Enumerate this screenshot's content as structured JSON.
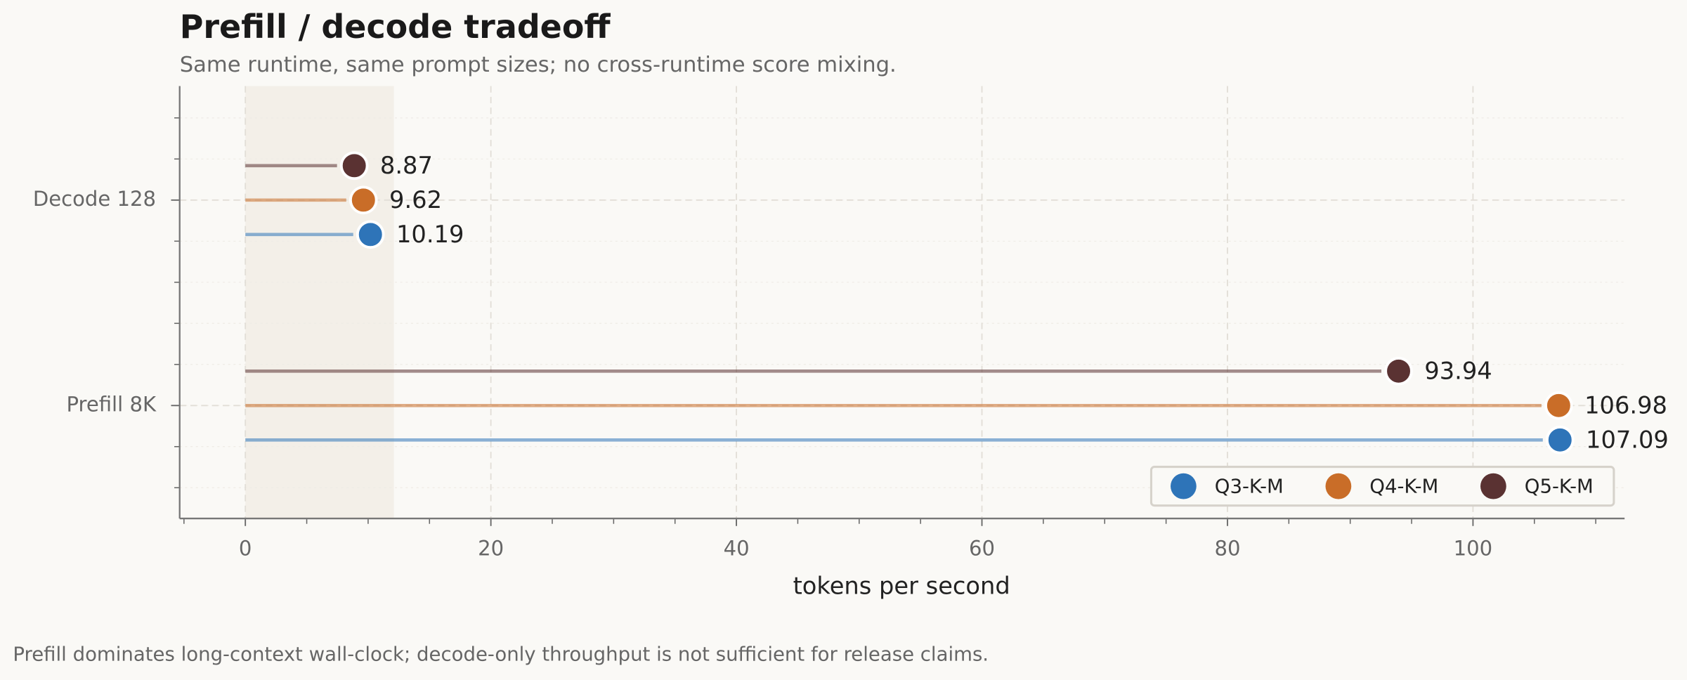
{
  "chart_data": {
    "type": "lollipop",
    "title": "Prefill / decode tradeoff",
    "subtitle": "Same runtime, same prompt sizes; no cross-runtime score mixing.",
    "x_label": "tokens per second",
    "footnote": "Prefill dominates long-context wall-clock; decode-only throughput is not sufficient for release claims.",
    "categories": [
      "Decode 128",
      "Prefill 8K"
    ],
    "series": [
      {
        "name": "Q3-K-M",
        "color": "#2e74b8",
        "values": [
          10.19,
          107.09
        ]
      },
      {
        "name": "Q4-K-M",
        "color": "#c96d28",
        "values": [
          9.62,
          106.98
        ]
      },
      {
        "name": "Q5-K-M",
        "color": "#5a3232",
        "values": [
          8.87,
          93.94
        ]
      }
    ],
    "xlim": [
      -5.35,
      112.35
    ],
    "xticks": [
      0,
      20,
      40,
      60,
      80,
      100
    ],
    "xminorticks": [
      -5,
      5,
      10,
      15,
      25,
      30,
      35,
      45,
      50,
      55,
      65,
      70,
      75,
      85,
      90,
      95,
      105,
      110
    ],
    "highlight_span": [
      0,
      12.1
    ],
    "grid": true,
    "legend": "lower right"
  }
}
